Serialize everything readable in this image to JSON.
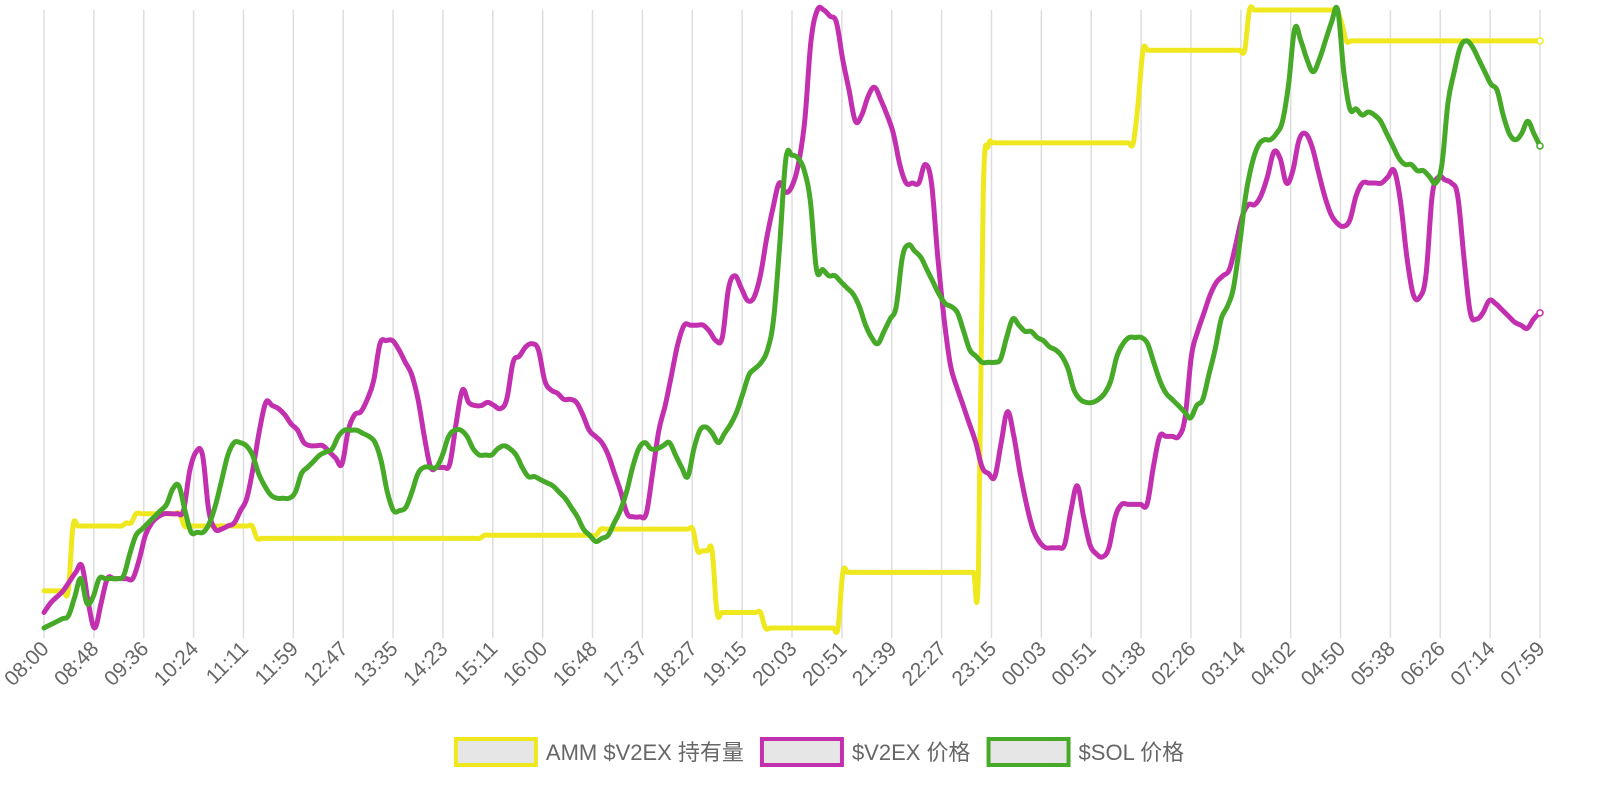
{
  "chart_data": {
    "type": "line",
    "title": "",
    "xlabel": "",
    "ylabel": "",
    "x_tick_labels": [
      "08:00",
      "08:48",
      "09:36",
      "10:24",
      "11:11",
      "11:59",
      "12:47",
      "13:35",
      "14:23",
      "15:11",
      "16:00",
      "16:48",
      "17:37",
      "18:27",
      "19:15",
      "20:03",
      "20:51",
      "21:39",
      "22:27",
      "23:15",
      "00:03",
      "00:51",
      "01:38",
      "02:26",
      "03:14",
      "04:02",
      "04:50",
      "05:38",
      "06:26",
      "07:14",
      "07:59"
    ],
    "y_axis_labels_visible": false,
    "ylim": [
      0,
      100
    ],
    "grid": "vertical",
    "legend_position": "bottom",
    "series": [
      {
        "name": "AMM $V2EX 持有量",
        "color": "#f0e81e",
        "values": [
          6,
          6,
          6,
          6,
          6,
          6,
          16.5,
          16.5,
          16.5,
          16.5,
          16.5,
          16.5,
          16.5,
          16.5,
          16.5,
          16.5,
          16.5,
          17,
          17,
          18.5,
          18.5,
          18.5,
          18.5,
          18.5,
          18.5,
          18.5,
          18.5,
          18.5,
          18.5,
          16.5,
          16.5,
          16.5,
          16.5,
          16.5,
          16.5,
          16.5,
          16.5,
          16.5,
          16.5,
          16.5,
          16.5,
          16.5,
          16.5,
          16.5,
          14.5,
          14.5,
          14.5,
          14.5,
          14.5,
          14.5,
          14.5,
          14.5,
          14.5,
          14.5,
          14.5,
          14.5,
          14.5,
          14.5,
          14.5,
          14.5,
          14.5,
          14.5,
          14.5,
          14.5,
          14.5,
          14.5,
          14.5,
          14.5,
          14.5,
          14.5,
          14.5,
          14.5,
          14.5,
          14.5,
          14.5,
          14.5,
          14.5,
          14.5,
          14.5,
          14.5,
          14.5,
          14.5,
          14.5,
          14.5,
          14.5,
          14.5,
          14.5,
          14.5,
          14.5,
          14.5,
          14.5,
          15,
          15,
          15,
          15,
          15,
          15,
          15,
          15,
          15,
          15,
          15,
          15,
          15,
          15,
          15,
          15,
          15,
          15,
          15,
          15,
          15,
          15,
          15,
          15,
          16,
          16,
          16,
          16,
          16,
          16,
          16,
          16,
          16,
          16,
          16,
          16,
          16,
          16,
          16,
          16,
          16,
          16,
          16,
          16,
          12.5,
          12.5,
          12.5,
          12.5,
          2.5,
          2.5,
          2.5,
          2.5,
          2.5,
          2.5,
          2.5,
          2.5,
          2.5,
          2.5,
          0,
          0,
          0,
          0,
          0,
          0,
          0,
          0,
          0,
          0,
          0,
          0,
          0,
          0,
          0,
          0,
          9,
          9,
          9,
          9,
          9,
          9,
          9,
          9,
          9,
          9,
          9,
          9,
          9,
          9,
          9,
          9,
          9,
          9,
          9,
          9,
          9,
          9,
          9,
          9,
          9,
          9,
          9,
          9,
          9,
          70,
          78,
          78.5,
          78.5,
          78.5,
          78.5,
          78.5,
          78.5,
          78.5,
          78.5,
          78.5,
          78.5,
          78.5,
          78.5,
          78.5,
          78.5,
          78.5,
          78.5,
          78.5,
          78.5,
          78.5,
          78.5,
          78.5,
          78.5,
          78.5,
          78.5,
          78.5,
          78.5,
          78.5,
          78.5,
          78.5,
          78.5,
          85,
          93.5,
          93.5,
          93.5,
          93.5,
          93.5,
          93.5,
          93.5,
          93.5,
          93.5,
          93.5,
          93.5,
          93.5,
          93.5,
          93.5,
          93.5,
          93.5,
          93.5,
          93.5,
          93.5,
          93.5,
          93.5,
          93.5,
          100,
          100,
          100,
          100,
          100,
          100,
          100,
          100,
          100,
          100,
          100,
          100,
          100,
          100,
          100,
          100,
          100,
          100,
          100,
          98,
          95,
          95,
          95,
          95,
          95,
          95,
          95,
          95,
          95,
          95,
          95,
          95,
          95,
          95,
          95,
          95,
          95,
          95,
          95,
          95,
          95,
          95,
          95,
          95,
          95,
          95,
          95,
          95,
          95,
          95,
          95,
          95,
          95,
          95,
          95,
          95,
          95,
          95,
          95,
          95,
          95
        ]
      },
      {
        "name": "$V2EX 价格",
        "color": "#c230b0",
        "values": [
          2.5,
          4,
          5,
          6,
          7.5,
          9,
          10,
          4,
          0,
          4,
          8,
          8,
          8,
          8,
          8,
          11,
          15,
          17,
          18,
          18.5,
          18.5,
          18.5,
          19,
          25.5,
          28.5,
          28,
          19,
          16,
          16,
          16.5,
          17,
          19,
          21,
          26,
          32,
          36.5,
          36,
          35.5,
          34.5,
          33,
          32,
          30,
          29.5,
          29.5,
          29.5,
          28.5,
          27.5,
          26.5,
          32,
          34.5,
          35,
          37,
          40,
          46,
          46.5,
          46.5,
          45,
          43,
          41,
          37,
          31,
          26,
          26,
          26,
          26.5,
          33,
          38.5,
          36.5,
          36,
          36,
          36.5,
          36,
          35.5,
          37,
          43,
          44,
          45.5,
          46,
          45,
          40,
          38.5,
          38,
          37,
          37,
          36.5,
          34.5,
          32,
          31,
          30,
          28,
          25,
          22,
          18.5,
          18,
          18,
          18.5,
          25,
          32,
          36,
          41,
          46,
          49,
          49,
          49,
          49,
          48,
          46.5,
          47,
          55,
          57,
          55,
          53,
          53.5,
          57,
          63,
          68,
          72,
          70.5,
          71.5,
          75,
          82,
          95,
          100,
          100,
          99,
          98,
          92,
          87,
          82,
          83,
          86,
          87.5,
          85.5,
          83,
          80,
          75,
          72,
          72,
          72,
          75,
          72,
          60,
          50,
          42.5,
          39,
          36,
          33,
          30,
          26,
          25,
          24.5,
          30,
          35,
          31,
          25,
          20,
          16,
          14,
          13,
          13,
          13,
          13.5,
          19,
          23,
          18,
          13.5,
          12,
          11.5,
          13,
          18,
          20,
          20,
          20,
          20,
          20,
          26,
          31,
          31,
          31,
          31,
          34,
          44,
          48,
          51,
          54,
          56,
          57,
          58,
          62,
          66.5,
          68.5,
          68.5,
          70,
          73,
          77,
          76,
          72,
          74,
          79,
          80,
          78,
          74,
          70,
          67,
          65.5,
          65,
          66,
          70,
          72,
          72,
          72,
          72,
          73,
          74,
          69,
          60,
          54,
          53.5,
          57,
          70,
          73,
          72.5,
          72,
          70,
          60,
          51,
          50,
          51,
          53,
          52.5,
          51.5,
          50.5,
          49.5,
          49,
          48.5,
          50,
          51
        ]
      },
      {
        "name": "$SOL 价格",
        "color": "#46aa28",
        "values": [
          0,
          0.5,
          1,
          1.5,
          2,
          5,
          8,
          4,
          5,
          8,
          8,
          8,
          8,
          8.5,
          12,
          15,
          16,
          17,
          18,
          19,
          20,
          22.5,
          23,
          19,
          15.5,
          15.5,
          15.5,
          17,
          20,
          24,
          28,
          30,
          30,
          29.5,
          28,
          25,
          23,
          21.5,
          21,
          21,
          21,
          22,
          25,
          26,
          27,
          28,
          28.5,
          29,
          31,
          32,
          32,
          32,
          31.5,
          31,
          30,
          27,
          22,
          19,
          19,
          19.5,
          22,
          25,
          26,
          26,
          26,
          28,
          31,
          32,
          32,
          31,
          29,
          28,
          28,
          28,
          29,
          29.5,
          29,
          28,
          26,
          24.5,
          24.5,
          24,
          23.5,
          23,
          22,
          21,
          19.5,
          18,
          16,
          15,
          14,
          14.5,
          15,
          17,
          19,
          22,
          26,
          29,
          30,
          29,
          29,
          29.5,
          30,
          28,
          26,
          24.5,
          29,
          32,
          32.5,
          31.5,
          30,
          31.5,
          33,
          35,
          38,
          41,
          42,
          43,
          45,
          50,
          62,
          76,
          76.5,
          76,
          74,
          69,
          58,
          58,
          57,
          57,
          56,
          55,
          54,
          52,
          49,
          47,
          46,
          48,
          50,
          52,
          60,
          62,
          61,
          60,
          58,
          56,
          54,
          52.5,
          52,
          51,
          48,
          45,
          44,
          43,
          43,
          43,
          43.5,
          47,
          50,
          49,
          48,
          48,
          47,
          46.5,
          45.5,
          45,
          44,
          42,
          38.5,
          37,
          36.5,
          36.5,
          37,
          38,
          40,
          44,
          46,
          47,
          47,
          47,
          46,
          43,
          40,
          38,
          37,
          36,
          35,
          34,
          36,
          37,
          41,
          45,
          50,
          52,
          55,
          62,
          70,
          75,
          78,
          79,
          79,
          80,
          82,
          88,
          97,
          95,
          92,
          90,
          92,
          95,
          98,
          100,
          90,
          84,
          84,
          83,
          83.5,
          83,
          82,
          80,
          78,
          76,
          75,
          75,
          74,
          74,
          73,
          72,
          75,
          85,
          90,
          94,
          95,
          94,
          92,
          90,
          88,
          87,
          83,
          80,
          79,
          80,
          82,
          80,
          78
        ]
      }
    ]
  }
}
